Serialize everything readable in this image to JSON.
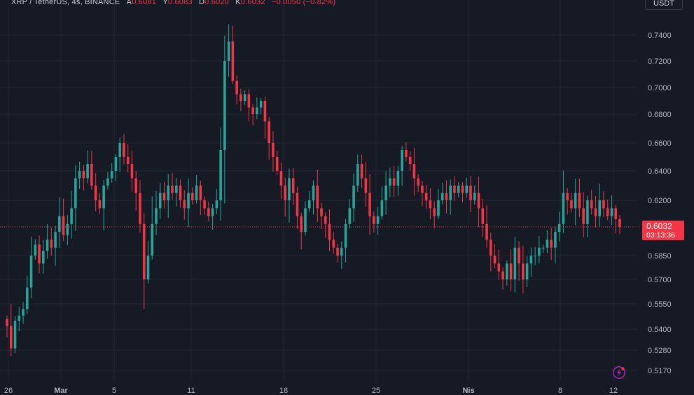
{
  "header": {
    "symbol": "XRP / TetherUS, 4s, BINANCE",
    "open_label": "A",
    "open_value": "0.6081",
    "high_label": "Y",
    "high_value": "0.6083",
    "low_label": "D",
    "low_value": "0.6020",
    "close_label": "K",
    "close_value": "0.6032",
    "change": "−0.0050 (−0.82%)"
  },
  "currency": "USDT",
  "last_price": {
    "price": "0.6032",
    "countdown": "03:13:36"
  },
  "icons": {
    "bolt": "lightning-bolt-icon"
  },
  "colors": {
    "background": "#161a25",
    "up": "#26a69a",
    "down": "#f23645",
    "grid": "#232632",
    "text": "#b2b5be"
  },
  "chart_data": {
    "type": "candlestick",
    "y_ticks": [
      "0.7400",
      "0.7200",
      "0.7000",
      "0.6800",
      "0.6600",
      "0.6400",
      "0.6200",
      "0.5850",
      "0.5700",
      "0.5550",
      "0.5400",
      "0.5280",
      "0.5170"
    ],
    "x_ticks": [
      "26",
      "Mar",
      "5",
      "11",
      "18",
      "25",
      "Nis",
      "8",
      "12"
    ],
    "last_value": 0.6032,
    "close_path": [
      0.542,
      0.529,
      0.545,
      0.548,
      0.552,
      0.565,
      0.585,
      0.592,
      0.58,
      0.588,
      0.595,
      0.59,
      0.6,
      0.61,
      0.598,
      0.605,
      0.615,
      0.635,
      0.64,
      0.635,
      0.645,
      0.63,
      0.62,
      0.615,
      0.63,
      0.635,
      0.64,
      0.65,
      0.66,
      0.65,
      0.645,
      0.635,
      0.625,
      0.605,
      0.57,
      0.585,
      0.605,
      0.615,
      0.625,
      0.62,
      0.63,
      0.625,
      0.63,
      0.62,
      0.615,
      0.625,
      0.62,
      0.63,
      0.62,
      0.615,
      0.61,
      0.615,
      0.62,
      0.655,
      0.72,
      0.735,
      0.705,
      0.695,
      0.69,
      0.695,
      0.685,
      0.68,
      0.685,
      0.69,
      0.675,
      0.66,
      0.65,
      0.64,
      0.63,
      0.62,
      0.635,
      0.625,
      0.61,
      0.6,
      0.615,
      0.62,
      0.63,
      0.615,
      0.61,
      0.605,
      0.595,
      0.59,
      0.585,
      0.59,
      0.605,
      0.615,
      0.63,
      0.645,
      0.635,
      0.625,
      0.61,
      0.605,
      0.61,
      0.62,
      0.63,
      0.635,
      0.63,
      0.64,
      0.655,
      0.65,
      0.645,
      0.635,
      0.63,
      0.625,
      0.62,
      0.615,
      0.61,
      0.62,
      0.625,
      0.62,
      0.63,
      0.625,
      0.63,
      0.625,
      0.63,
      0.62,
      0.625,
      0.615,
      0.605,
      0.595,
      0.585,
      0.58,
      0.575,
      0.57,
      0.58,
      0.57,
      0.59,
      0.58,
      0.57,
      0.58,
      0.585,
      0.585,
      0.59,
      0.59,
      0.595,
      0.59,
      0.6,
      0.605,
      0.625,
      0.62,
      0.615,
      0.625,
      0.615,
      0.605,
      0.62,
      0.615,
      0.61,
      0.62,
      0.615,
      0.61,
      0.615,
      0.6081,
      0.6032
    ]
  }
}
